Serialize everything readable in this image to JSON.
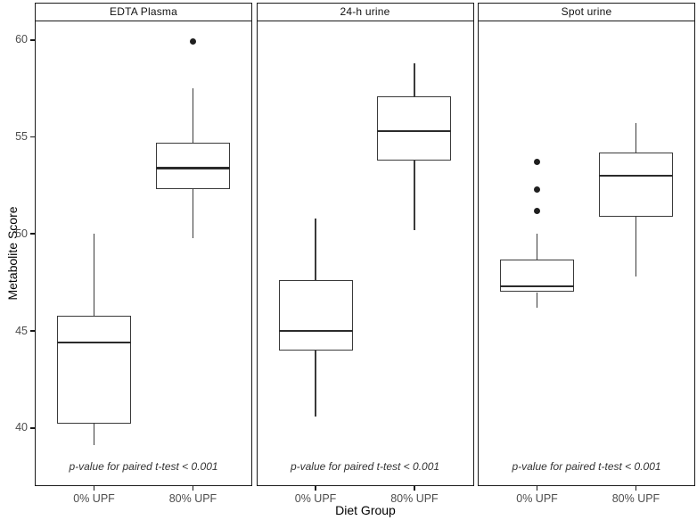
{
  "axes": {
    "x_title": "Diet Group",
    "y_title": "Metabolite Score"
  },
  "colors": {
    "box_stroke": "#3a3a3a",
    "median": "#2b2b2b",
    "panel_border": "#1a1a1a",
    "tick_label": "#4d4d4d",
    "strip_text": "#111111",
    "annotation_text": "#333333",
    "outlier_fill": "#1f1f1f",
    "background": "#ffffff"
  },
  "chart_data": {
    "type": "boxplot",
    "title": "",
    "xlabel": "Diet Group",
    "ylabel": "Metabolite Score",
    "x_categories": [
      "0% UPF",
      "80% UPF"
    ],
    "ylim": [
      37,
      61
    ],
    "y_ticks": [
      40,
      45,
      50,
      55,
      60
    ],
    "grid": false,
    "legend": "none",
    "annotation_y": 38,
    "facets": [
      {
        "label": "EDTA Plasma",
        "annotation": "p-value for paired t-test < 0.001",
        "boxes": [
          {
            "category": "0% UPF",
            "whisker_low": 39.1,
            "q1": 40.2,
            "median": 44.4,
            "q3": 45.8,
            "whisker_high": 50.0,
            "outliers": []
          },
          {
            "category": "80% UPF",
            "whisker_low": 49.8,
            "q1": 52.3,
            "median": 53.4,
            "q3": 54.7,
            "whisker_high": 57.5,
            "outliers": [
              59.9
            ]
          }
        ]
      },
      {
        "label": "24-h urine",
        "annotation": "p-value for paired t-test < 0.001",
        "boxes": [
          {
            "category": "0% UPF",
            "whisker_low": 40.6,
            "q1": 44.0,
            "median": 45.0,
            "q3": 47.6,
            "whisker_high": 50.8,
            "outliers": []
          },
          {
            "category": "80% UPF",
            "whisker_low": 50.2,
            "q1": 53.8,
            "median": 55.3,
            "q3": 57.1,
            "whisker_high": 58.8,
            "outliers": []
          }
        ]
      },
      {
        "label": "Spot urine",
        "annotation": "p-value for paired t-test < 0.001",
        "boxes": [
          {
            "category": "0% UPF",
            "whisker_low": 46.2,
            "q1": 47.0,
            "median": 47.3,
            "q3": 48.7,
            "whisker_high": 50.0,
            "outliers": [
              53.7,
              52.3,
              51.2
            ]
          },
          {
            "category": "80% UPF",
            "whisker_low": 47.8,
            "q1": 50.9,
            "median": 53.0,
            "q3": 54.2,
            "whisker_high": 55.7,
            "outliers": []
          }
        ]
      }
    ]
  }
}
